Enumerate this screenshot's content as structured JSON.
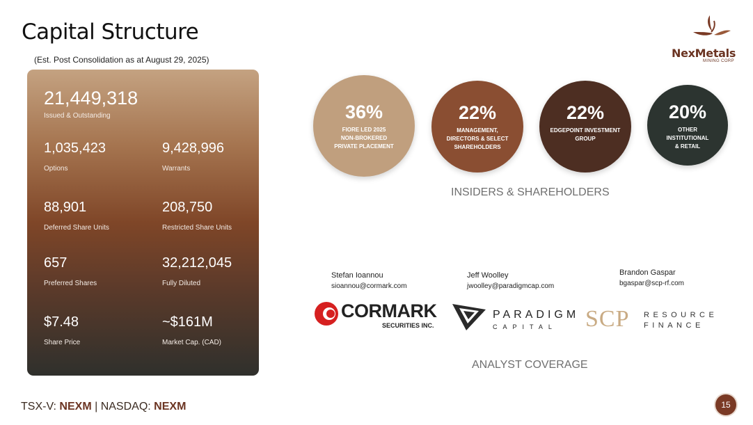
{
  "title": "Capital Structure",
  "subtitle": "(Est. Post Consolidation as at August 29, 2025)",
  "logo": {
    "name": "NexMetals",
    "sub": "MINING CORP",
    "icon": "bird-leaf-icon"
  },
  "stats": {
    "issued": {
      "value": "21,449,318",
      "label": "Issued & Outstanding"
    },
    "options": {
      "value": "1,035,423",
      "label": "Options"
    },
    "warrants": {
      "value": "9,428,996",
      "label": "Warrants"
    },
    "dsu": {
      "value": "88,901",
      "label": "Deferred Share Units"
    },
    "rsu": {
      "value": "208,750",
      "label": "Restricted Share Units"
    },
    "preferred": {
      "value": "657",
      "label": "Preferred Shares"
    },
    "diluted": {
      "value": "32,212,045",
      "label": "Fully Diluted"
    },
    "price": {
      "value": "$7.48",
      "label": "Share Price"
    },
    "mcap": {
      "value": "~$161M",
      "label": "Market Cap. (CAD)"
    }
  },
  "shareholders": {
    "heading": "INSIDERS & SHAREHOLDERS",
    "items": [
      {
        "pct": "36%",
        "l1": "FIORE LED 2025",
        "l2": "NON-BROKERED",
        "l3": "PRIVATE PLACEMENT"
      },
      {
        "pct": "22%",
        "l1": "MANAGEMENT,",
        "l2": "DIRECTORS & SELECT",
        "l3": "SHAREHOLDERS"
      },
      {
        "pct": "22%",
        "l1": "EDGEPOINT INVESTMENT",
        "l2": "GROUP"
      },
      {
        "pct": "20%",
        "l1": "OTHER",
        "l2": "INSTITUTIONAL",
        "l3": "& RETAIL"
      }
    ],
    "colors": [
      "#c09f7e",
      "#8a4e32",
      "#4d2e22",
      "#2c3430"
    ]
  },
  "analysts": {
    "heading": "ANALYST COVERAGE",
    "items": [
      {
        "name": "Stefan Ioannou",
        "email": "sioannou@cormark.com",
        "firm": "CORMARK",
        "firm_sub": "SECURITIES INC."
      },
      {
        "name": "Jeff Woolley",
        "email": "jwoolley@paradigmcap.com",
        "firm": "PARADIGM",
        "firm_sub": "CAPITAL"
      },
      {
        "name": "Brandon Gaspar",
        "email": "bgaspar@scp-rf.com",
        "firm": "SCP",
        "firm_l1": "RESOURCE",
        "firm_l2": "FINANCE"
      }
    ]
  },
  "footer": {
    "ex1": "TSX-V: ",
    "tk1": "NEXM",
    "sep": " | ",
    "ex2": "NASDAQ: ",
    "tk2": "NEXM",
    "page": "15"
  }
}
